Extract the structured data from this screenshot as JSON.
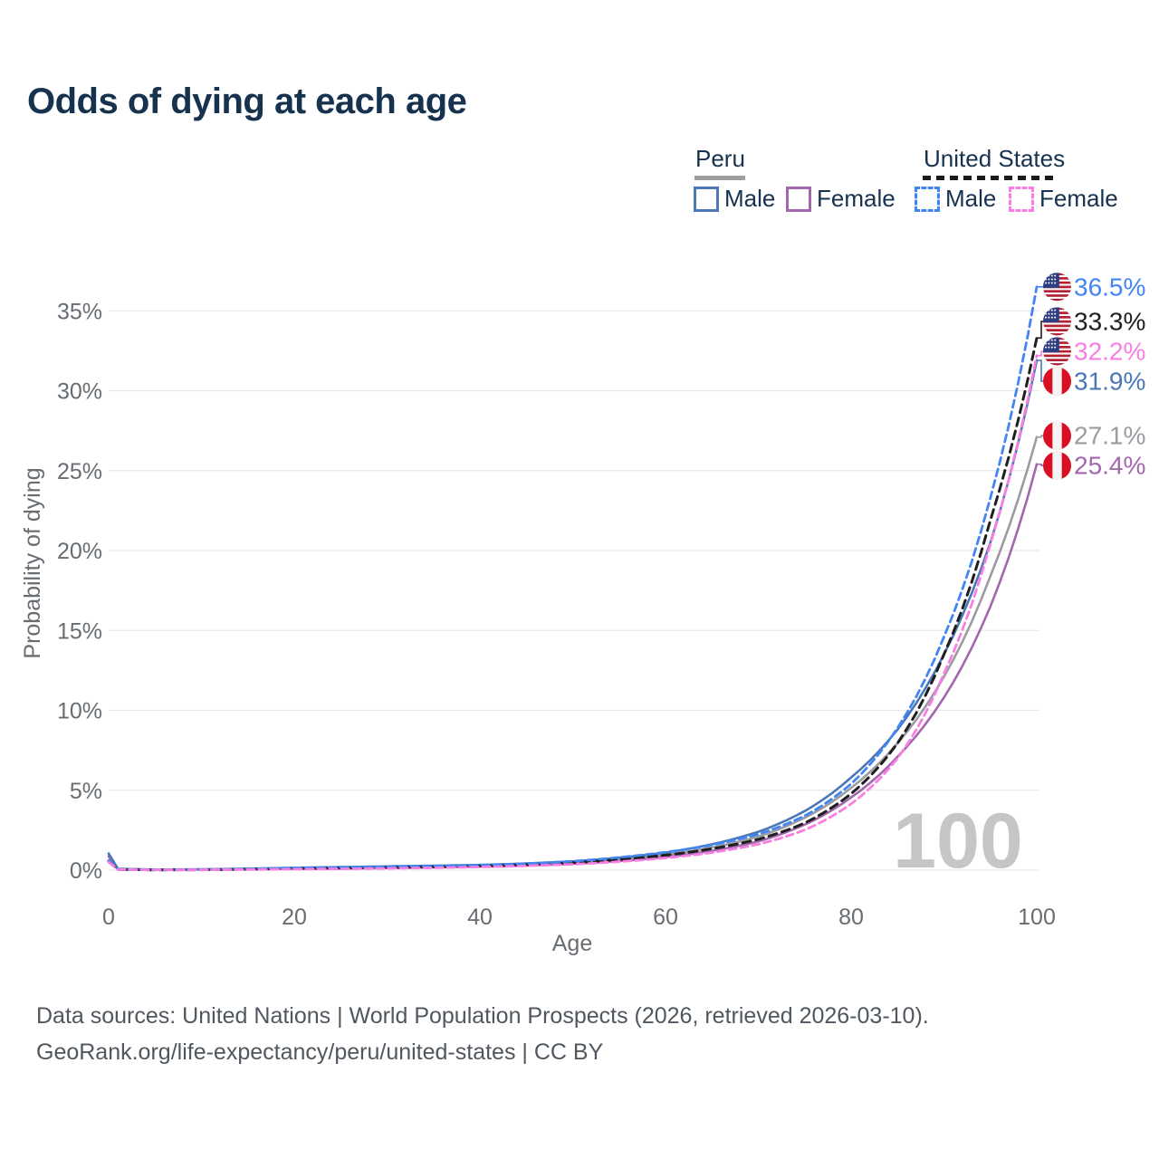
{
  "title": "Odds of dying at each age",
  "watermark": "100",
  "legend": {
    "peru": {
      "label": "Peru",
      "male": "Male",
      "female": "Female"
    },
    "us": {
      "label": "United States",
      "male": "Male",
      "female": "Female"
    }
  },
  "footer": {
    "line1": "Data sources: United Nations | World Population Prospects (2026, retrieved 2026-03-10).",
    "line2": "GeoRank.org/life-expectancy/peru/united-states | CC BY"
  },
  "colors": {
    "title_text": "#16324f",
    "axis_text": "#686d72",
    "gridline": "#e8eaec",
    "watermark": "#c6c6c6",
    "peru_underline": "#9e9e9e",
    "us_underline": "#191919"
  },
  "chart_data": {
    "type": "line",
    "title": "Odds of dying at each age",
    "xlabel": "Age",
    "ylabel": "Probability of dying",
    "xlim": [
      0,
      100
    ],
    "ylim": [
      0,
      37.5
    ],
    "grid": "horizontal-only",
    "legend_position": "top-right",
    "x_ticks": [
      {
        "v": 0,
        "label": "0"
      },
      {
        "v": 20,
        "label": "20"
      },
      {
        "v": 40,
        "label": "40"
      },
      {
        "v": 60,
        "label": "60"
      },
      {
        "v": 80,
        "label": "80"
      },
      {
        "v": 100,
        "label": "100"
      }
    ],
    "y_ticks": [
      {
        "v": 0,
        "label": "0%"
      },
      {
        "v": 5,
        "label": "5%"
      },
      {
        "v": 10,
        "label": "10%"
      },
      {
        "v": 15,
        "label": "15%"
      },
      {
        "v": 20,
        "label": "20%"
      },
      {
        "v": 25,
        "label": "25%"
      },
      {
        "v": 30,
        "label": "30%"
      },
      {
        "v": 35,
        "label": "35%"
      }
    ],
    "ages": [
      0,
      1,
      5,
      10,
      15,
      20,
      25,
      30,
      35,
      40,
      45,
      50,
      55,
      60,
      65,
      70,
      75,
      80,
      85,
      90,
      95,
      100
    ],
    "series": [
      {
        "name": "Peru Total",
        "country": "peru",
        "sex": "total",
        "style": "solid",
        "color": "#9b9ba1",
        "end_label": "27.1%",
        "values": [
          0.95,
          0.075,
          0.035,
          0.045,
          0.075,
          0.12,
          0.15,
          0.19,
          0.23,
          0.28,
          0.36,
          0.48,
          0.68,
          0.96,
          1.42,
          2.1,
          3.28,
          5.15,
          7.95,
          12.1,
          18.4,
          27.1
        ]
      },
      {
        "name": "Peru Female",
        "country": "peru",
        "sex": "female",
        "style": "solid",
        "color": "#a267ad",
        "end_label": "25.4%",
        "values": [
          0.85,
          0.07,
          0.03,
          0.04,
          0.06,
          0.08,
          0.1,
          0.13,
          0.17,
          0.22,
          0.29,
          0.4,
          0.57,
          0.82,
          1.21,
          1.8,
          2.85,
          4.55,
          7.1,
          10.8,
          16.5,
          25.4
        ]
      },
      {
        "name": "Peru Male",
        "country": "peru",
        "sex": "male",
        "style": "solid",
        "color": "#4a77b6",
        "end_label": "31.9%",
        "values": [
          1.05,
          0.08,
          0.04,
          0.05,
          0.09,
          0.15,
          0.19,
          0.24,
          0.28,
          0.33,
          0.42,
          0.55,
          0.78,
          1.1,
          1.62,
          2.4,
          3.7,
          5.8,
          8.8,
          13.5,
          20.5,
          31.9
        ]
      },
      {
        "name": "United States Total",
        "country": "us",
        "sex": "total",
        "style": "dashed",
        "color": "#1f1f1f",
        "end_label": "33.3%",
        "values": [
          0.55,
          0.042,
          0.018,
          0.025,
          0.06,
          0.1,
          0.13,
          0.165,
          0.205,
          0.255,
          0.34,
          0.465,
          0.665,
          0.94,
          1.34,
          1.93,
          2.95,
          4.78,
          7.95,
          13.5,
          21.9,
          33.3
        ]
      },
      {
        "name": "United States Male",
        "country": "us",
        "sex": "male",
        "style": "dashed",
        "color": "#4285f4",
        "end_label": "36.5%",
        "values": [
          0.6,
          0.045,
          0.02,
          0.03,
          0.08,
          0.14,
          0.18,
          0.22,
          0.26,
          0.31,
          0.41,
          0.56,
          0.8,
          1.12,
          1.58,
          2.25,
          3.4,
          5.4,
          8.9,
          14.6,
          23.3,
          36.5
        ]
      },
      {
        "name": "United States Female",
        "country": "us",
        "sex": "female",
        "style": "dashed",
        "color": "#f97ee3",
        "end_label": "32.2%",
        "values": [
          0.5,
          0.04,
          0.015,
          0.02,
          0.04,
          0.06,
          0.08,
          0.11,
          0.15,
          0.2,
          0.27,
          0.37,
          0.53,
          0.76,
          1.1,
          1.62,
          2.52,
          4.15,
          7.0,
          12.3,
          20.4,
          32.2
        ]
      }
    ]
  }
}
